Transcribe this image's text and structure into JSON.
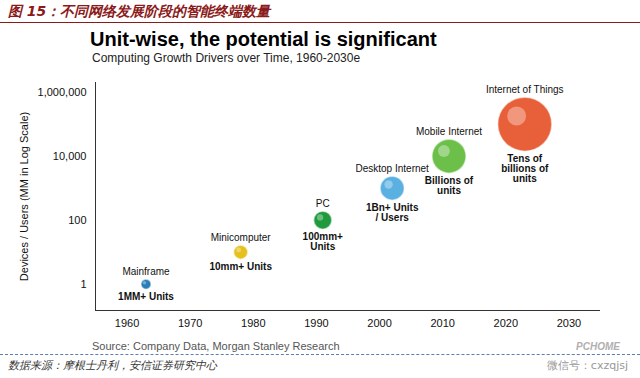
{
  "header": "图 15：不同网络发展阶段的智能终端数量",
  "chart_data": {
    "type": "scatter",
    "title": "Unit-wise, the potential is significant",
    "subtitle": "Computing Growth Drivers over Time, 1960-2030e",
    "y_label": "Devices / Users (MM in Log Scale)",
    "x_label": null,
    "categories": [
      "Mainframe",
      "Minicomputer",
      "PC",
      "Desktop Internet",
      "Mobile Internet",
      "Internet of Things"
    ],
    "unit_labels": [
      "1MM+ Units",
      "10mm+ Units",
      "100mm+\nUnits",
      "1Bn+ Units\n/ Users",
      "Billions of\nunits",
      "Tens of\nbillions of\nunits"
    ],
    "x": [
      1963,
      1978,
      1991,
      2002,
      2011,
      2023
    ],
    "values": [
      1,
      10,
      100,
      1000,
      10000,
      100000
    ],
    "sizes": [
      5,
      7,
      9,
      12,
      17,
      27
    ],
    "colors": [
      "#2a7fb8",
      "#e6c01c",
      "#1f9a3c",
      "#5ab0e0",
      "#6cc04a",
      "#e8603a"
    ],
    "xlim": [
      1955,
      2035
    ],
    "ylim": [
      0.15,
      2000000
    ],
    "xticks": [
      1960,
      1970,
      1980,
      1990,
      2000,
      2010,
      2020,
      2030
    ],
    "yticks": [
      1,
      100,
      {
        "value": 10000,
        "label": "10,000"
      },
      {
        "value": 1000000,
        "label": "1,000,000"
      }
    ],
    "log": "y",
    "grid": false,
    "source": "Source: Company Data, Morgan Stanley Research"
  },
  "footer": "数据来源：摩根士丹利，安信证券研究中心",
  "watermarks": [
    "PCHOME",
    "微信号：cxzqjsj"
  ]
}
